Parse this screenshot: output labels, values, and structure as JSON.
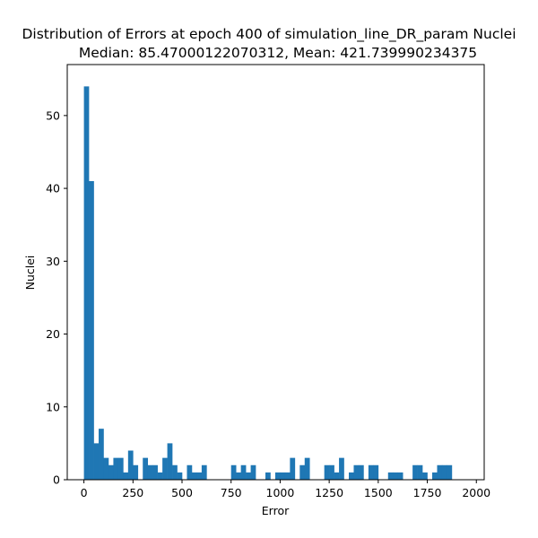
{
  "chart_data": {
    "type": "bar",
    "title": "Distribution of Errors at epoch 400 of simulation_line_DR_param Nuclei",
    "subtitle": "Median: 85.47000122070312, Mean: 421.739990234375",
    "xlabel": "Error",
    "ylabel": "Nuclei",
    "xlim": [
      -85,
      2040
    ],
    "ylim": [
      0,
      57
    ],
    "xticks": [
      0,
      250,
      500,
      750,
      1000,
      1250,
      1500,
      1750,
      2000
    ],
    "yticks": [
      0,
      10,
      20,
      30,
      40,
      50
    ],
    "bin_start": 0,
    "bin_width": 25,
    "values": [
      54,
      41,
      5,
      7,
      3,
      2,
      3,
      3,
      1,
      4,
      2,
      0,
      3,
      2,
      2,
      1,
      3,
      5,
      2,
      1,
      0,
      2,
      1,
      1,
      2,
      0,
      0,
      0,
      0,
      0,
      2,
      1,
      2,
      1,
      2,
      0,
      0,
      1,
      0,
      1,
      1,
      1,
      3,
      0,
      2,
      3,
      0,
      0,
      0,
      2,
      2,
      1,
      3,
      0,
      1,
      2,
      2,
      0,
      2,
      2,
      0,
      0,
      1,
      1,
      1,
      0,
      0,
      2,
      2,
      1,
      0,
      1,
      2,
      2,
      2,
      0,
      0,
      0,
      0,
      0
    ],
    "bar_color": "#1f77b4",
    "grid": false
  }
}
